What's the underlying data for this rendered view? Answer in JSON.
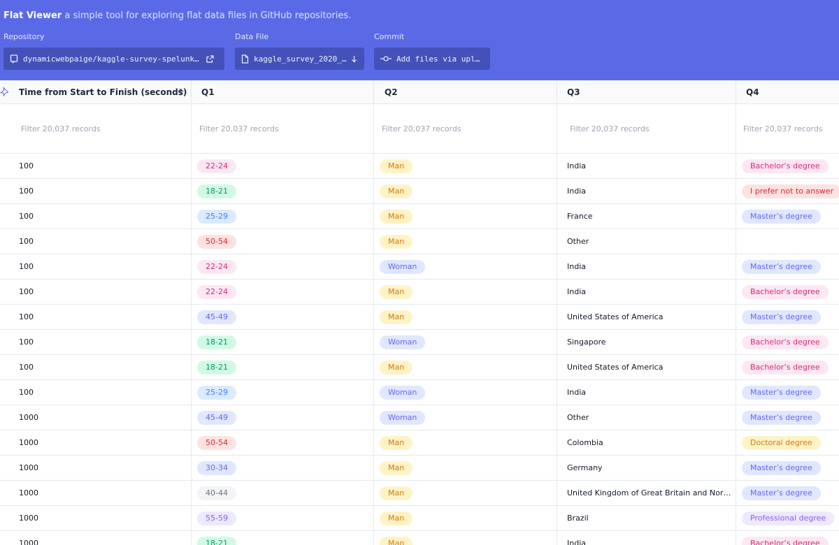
{
  "header": {
    "app_name": "Flat Viewer",
    "tagline": "a simple tool for exploring flat data files in GitHub repositories.",
    "repository": {
      "label": "Repository",
      "value": "dynamicwebpaige/kaggle-survey-spelunking"
    },
    "data_file": {
      "label": "Data File",
      "value": "kaggle_survey_2020_…"
    },
    "commit": {
      "label": "Commit",
      "value": "Add files via upload"
    }
  },
  "colors": {
    "header_bg": "#5a6ae6",
    "control_bg": "#4451b8"
  },
  "table": {
    "columns": [
      "Time from Start to Finish (seconds)",
      "Q1",
      "Q2",
      "Q3",
      "Q4"
    ],
    "filter_placeholder": "Filter 20,037 records",
    "rows": [
      [
        "100",
        "22-24",
        "Man",
        "India",
        "Bachelor’s degree"
      ],
      [
        "100",
        "18-21",
        "Man",
        "India",
        "I prefer not to answer"
      ],
      [
        "100",
        "25-29",
        "Man",
        "France",
        "Master’s degree"
      ],
      [
        "100",
        "50-54",
        "Man",
        "Other",
        ""
      ],
      [
        "100",
        "22-24",
        "Woman",
        "India",
        "Master’s degree"
      ],
      [
        "100",
        "22-24",
        "Man",
        "India",
        "Bachelor’s degree"
      ],
      [
        "100",
        "45-49",
        "Man",
        "United States of America",
        "Master’s degree"
      ],
      [
        "100",
        "18-21",
        "Woman",
        "Singapore",
        "Bachelor’s degree"
      ],
      [
        "100",
        "18-21",
        "Man",
        "United States of America",
        "Bachelor’s degree"
      ],
      [
        "100",
        "25-29",
        "Woman",
        "India",
        "Master’s degree"
      ],
      [
        "1000",
        "45-49",
        "Woman",
        "Other",
        "Master’s degree"
      ],
      [
        "1000",
        "50-54",
        "Man",
        "Colombia",
        "Doctoral degree"
      ],
      [
        "1000",
        "30-34",
        "Man",
        "Germany",
        "Master’s degree"
      ],
      [
        "1000",
        "40-44",
        "Man",
        "United Kingdom of Great Britain and Northern Ireland",
        "Master’s degree"
      ],
      [
        "1000",
        "55-59",
        "Man",
        "Brazil",
        "Professional degree"
      ],
      [
        "1000",
        "18-21",
        "Man",
        "India",
        "Bachelor’s degree"
      ]
    ]
  },
  "pill_colors": {
    "22-24": [
      "#fce7f3",
      "#db2777"
    ],
    "18-21": [
      "#d1fae5",
      "#059669"
    ],
    "25-29": [
      "#dbeafe",
      "#3b82f6"
    ],
    "50-54": [
      "#fee2e2",
      "#dc2626"
    ],
    "45-49": [
      "#e0e7ff",
      "#6366f1"
    ],
    "30-34": [
      "#e0e7ff",
      "#6366f1"
    ],
    "40-44": [
      "#f3f4f6",
      "#6b7280"
    ],
    "55-59": [
      "#ede9fe",
      "#8b5cf6"
    ],
    "Man": [
      "#fef3c7",
      "#d97706"
    ],
    "Woman": [
      "#e0e7ff",
      "#6366f1"
    ],
    "Bachelor’s degree": [
      "#fce7f3",
      "#db2777"
    ],
    "I prefer not to answer": [
      "#fee2e2",
      "#dc2626"
    ],
    "Master’s degree": [
      "#e0e7ff",
      "#6366f1"
    ],
    "Doctoral degree": [
      "#fef3c7",
      "#d97706"
    ],
    "Professional degree": [
      "#ede9fe",
      "#8b5cf6"
    ]
  },
  "icons": {
    "pin": "pin-icon",
    "sort": "sort-arrow-up-icon",
    "repo": "repo-icon",
    "external": "external-link-icon",
    "file": "file-icon",
    "download": "download-arrow-icon",
    "commit": "commit-icon"
  }
}
